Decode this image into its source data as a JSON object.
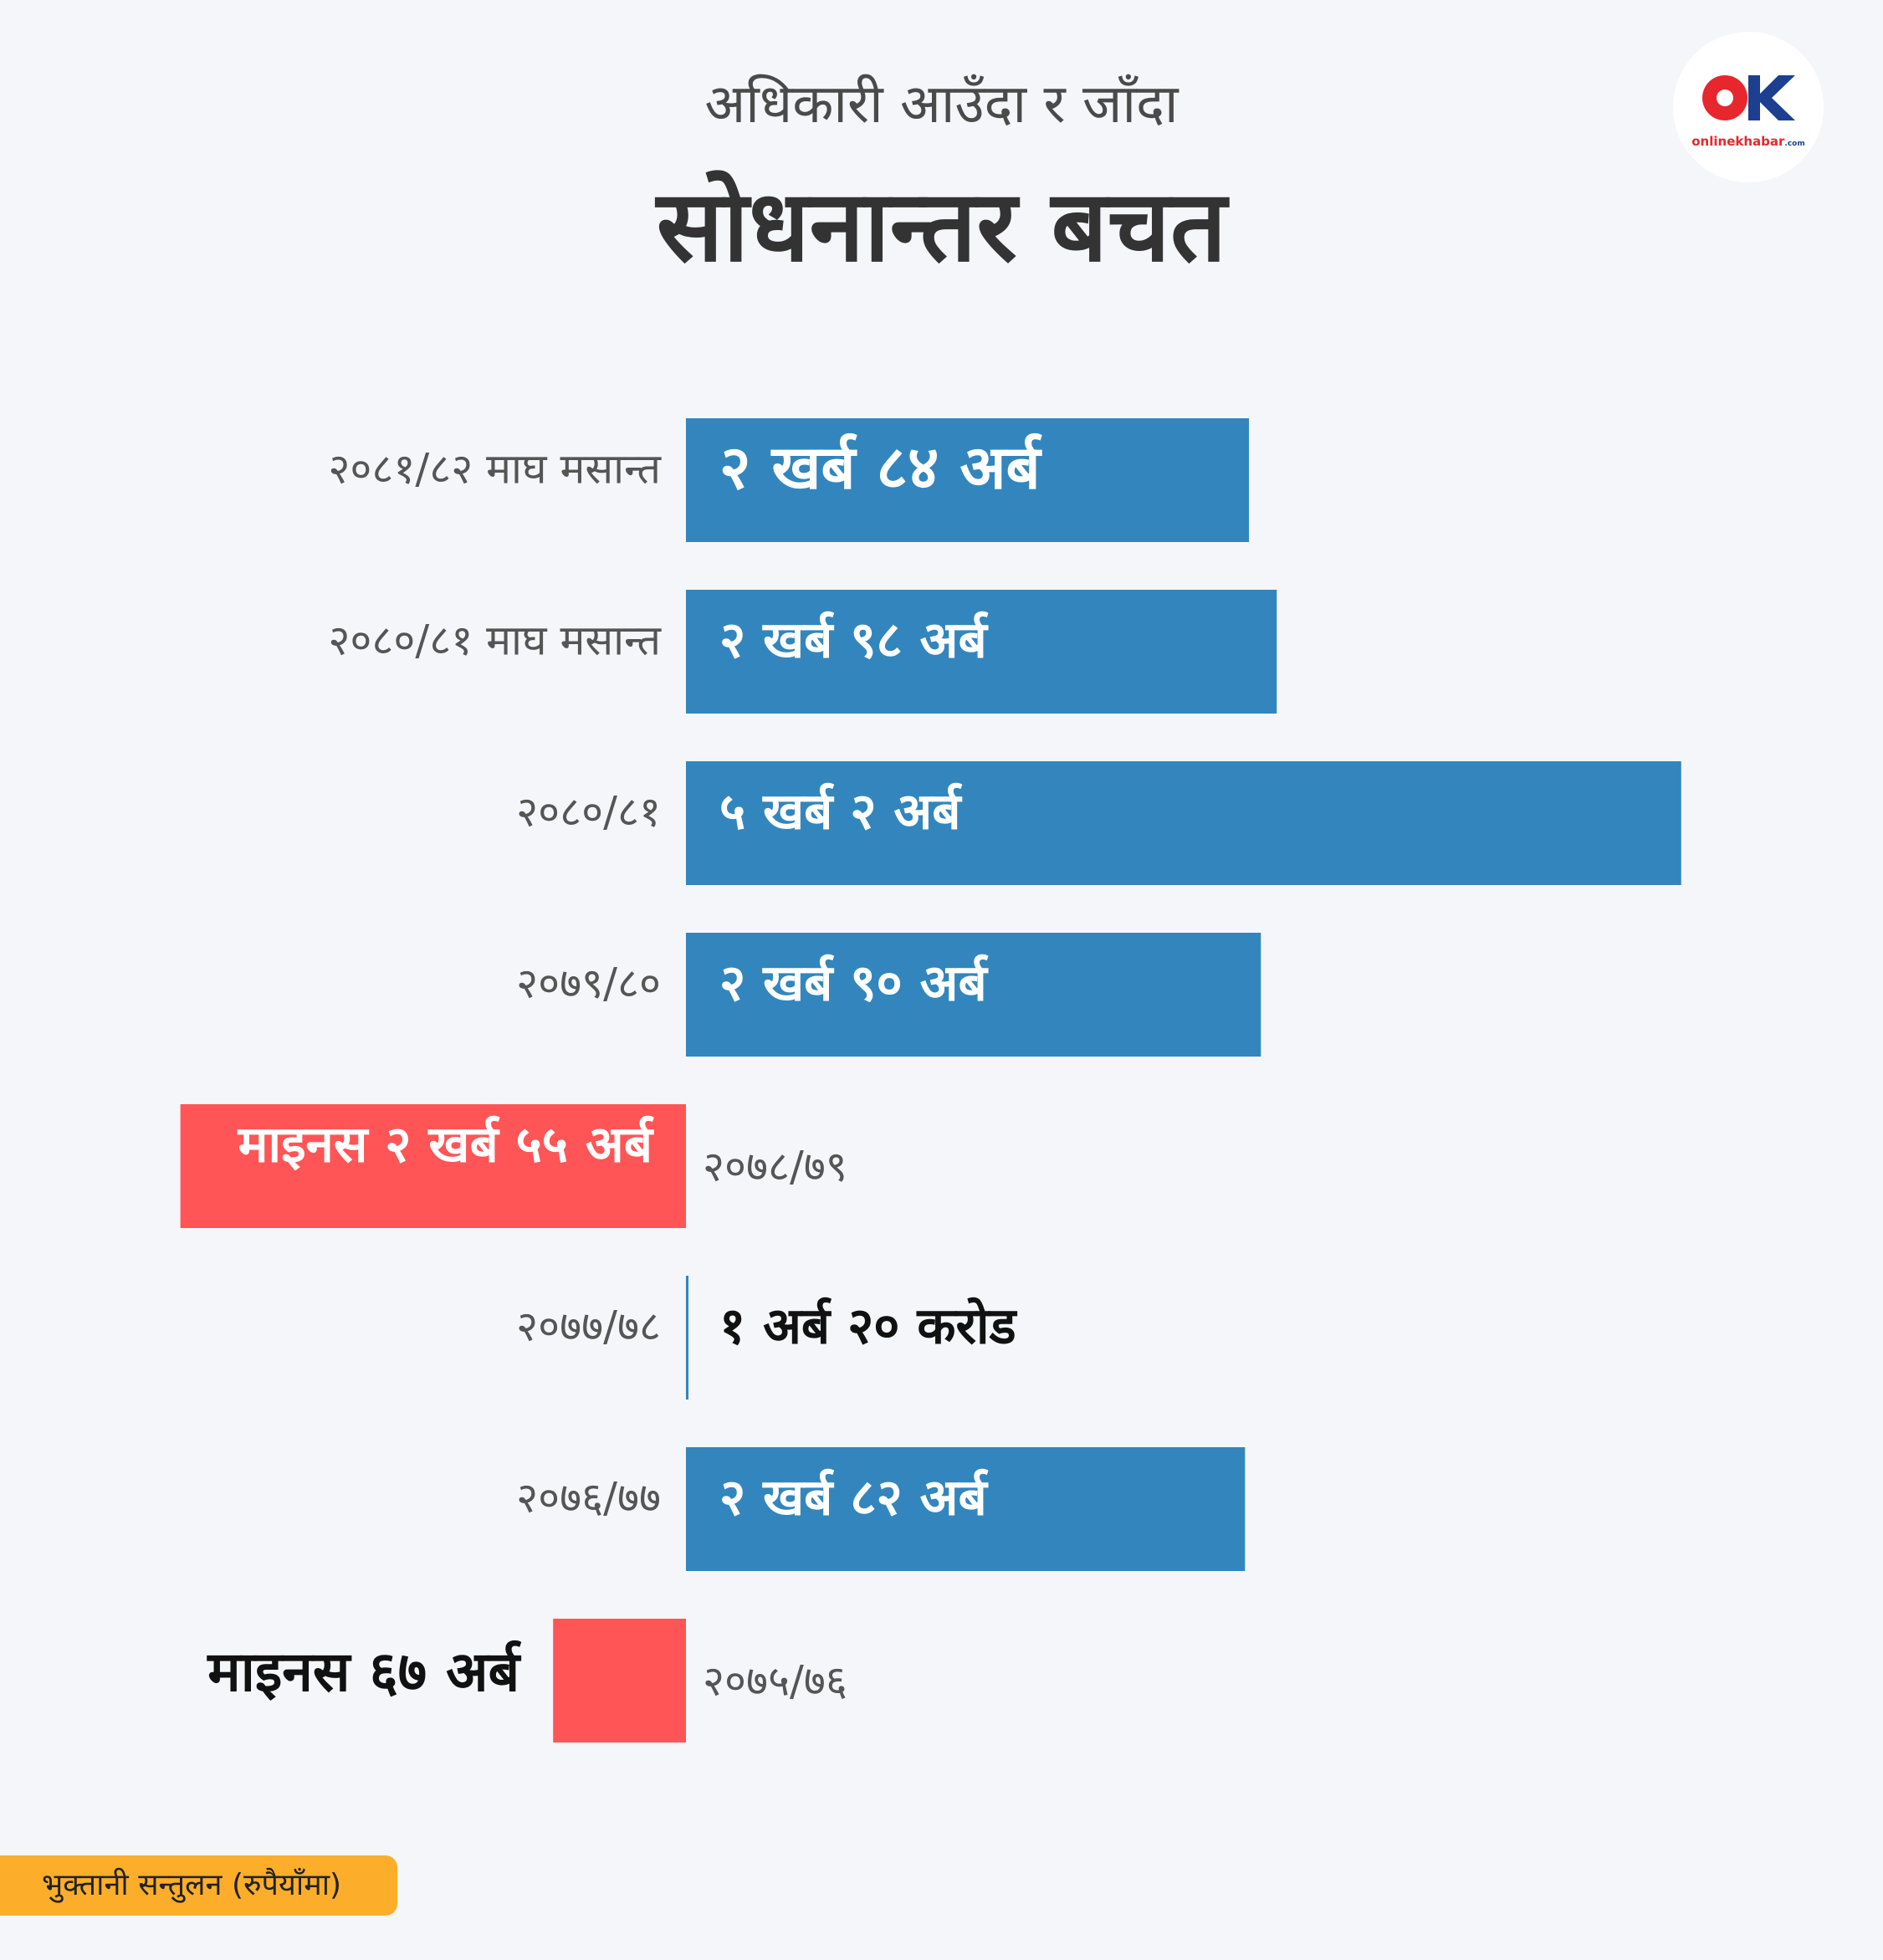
{
  "header": {
    "subtitle": "अधिकारी आउँदा र जाँदा",
    "title": "सोधनान्तर बचत"
  },
  "logo": {
    "brand_prefix": "online",
    "brand_suffix": "khabar",
    "brand_domain": ".com",
    "colors": {
      "circle": "#e8262d",
      "k": "#1c3f8f"
    }
  },
  "footnote": "भुक्तानी सन्तुलन (रुपैयाँमा)",
  "colors": {
    "positive": "#3386bd",
    "negative": "#ff5556",
    "footnote_bg": "#fcae2b",
    "background": "#f5f6fa"
  },
  "chart_data": {
    "type": "bar",
    "orientation": "horizontal",
    "unit": "अर्ब",
    "categories": [
      "२०८१/८२ माघ मसान्त",
      "२०८०/८१ माघ मसान्त",
      "२०८०/८१",
      "२०७९/८०",
      "२०७८/७९",
      "२०७७/७८",
      "२०७६/७७",
      "२०७५/७६"
    ],
    "values": [
      284,
      298,
      502,
      290,
      -255,
      1.2,
      282,
      -67
    ],
    "data_labels": [
      "२ खर्ब ८४ अर्ब",
      "२ खर्ब ९८ अर्ब",
      "५ खर्ब २ अर्ब",
      "२ खर्ब ९० अर्ब",
      "माइनस २ खर्ब ५५ अर्ब",
      "१ अर्ब २० करोड",
      "२ खर्ब ८२ अर्ब",
      "माइनस ६७ अर्ब"
    ]
  }
}
